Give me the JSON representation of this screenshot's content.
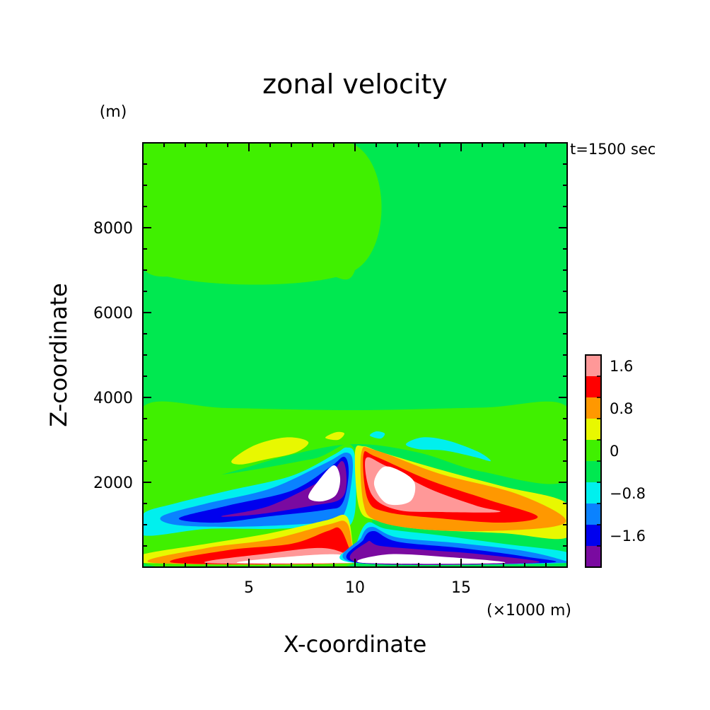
{
  "chart_data": {
    "type": "heatmap",
    "title": "zonal velocity",
    "xlabel": "X-coordinate",
    "ylabel": "Z-coordinate",
    "x_unit": "(×1000 m)",
    "y_unit": "(m)",
    "time_label": "t=1500 sec",
    "xlim": [
      0,
      20
    ],
    "ylim": [
      0,
      10000
    ],
    "x_ticks": [
      5,
      10,
      15
    ],
    "y_ticks": [
      2000,
      4000,
      6000,
      8000
    ],
    "colorbar": {
      "levels": [
        -2.0,
        -1.6,
        -1.2,
        -0.8,
        -0.4,
        0,
        0.4,
        0.8,
        1.2,
        1.6,
        2.0
      ],
      "tick_labels": [
        {
          "value": 1.6,
          "text": "1.6"
        },
        {
          "value": 0.8,
          "text": "0.8"
        },
        {
          "value": 0,
          "text": "0"
        },
        {
          "value": -0.8,
          "text": "−0.8"
        },
        {
          "value": -1.6,
          "text": "−1.6"
        }
      ],
      "colors": [
        "#7a0aa0",
        "#0000ee",
        "#0a82ff",
        "#00f0ee",
        "#00e850",
        "#40f000",
        "#e8f800",
        "#ff9800",
        "#ff0000",
        "#ff9898"
      ]
    },
    "background_color": "#00e850",
    "contours": [
      {
        "name": "upper-band-left-lower",
        "color": "#40f000",
        "points": [
          [
            0,
            7050
          ],
          [
            4,
            7080
          ],
          [
            8,
            7000
          ],
          [
            10,
            7000
          ],
          [
            10,
            9950
          ],
          [
            0,
            9950
          ]
        ]
      },
      {
        "name": "upper-band-left-upper",
        "color": "#40f000",
        "points": [
          [
            0,
            9950
          ],
          [
            10,
            9950
          ],
          [
            10,
            9950
          ],
          [
            0,
            9950
          ]
        ]
      },
      {
        "name": "mid-band",
        "color": "#40f000",
        "points": [
          [
            0,
            3780
          ],
          [
            4,
            3750
          ],
          [
            10,
            3700
          ],
          [
            16,
            3760
          ],
          [
            20,
            3780
          ],
          [
            20,
            2050
          ],
          [
            16,
            2250
          ],
          [
            13,
            2700
          ],
          [
            10,
            2900
          ],
          [
            7,
            2650
          ],
          [
            3,
            2100
          ],
          [
            0,
            1980
          ]
        ]
      },
      {
        "name": "upper-left-field",
        "color": "#40f000",
        "points": [
          [
            0,
            9950
          ],
          [
            10,
            9950
          ],
          [
            10,
            7000
          ],
          [
            0,
            7050
          ]
        ]
      },
      {
        "name": "low-left-band",
        "color": "#40f000",
        "points": [
          [
            0,
            1980
          ],
          [
            4,
            2200
          ],
          [
            8,
            2550
          ],
          [
            10,
            2750
          ],
          [
            10,
            100
          ],
          [
            0,
            100
          ]
        ]
      },
      {
        "name": "yellow-blob-left",
        "color": "#e8f800",
        "points": [
          [
            4.2,
            2520
          ],
          [
            5.3,
            2880
          ],
          [
            6.8,
            3060
          ],
          [
            7.8,
            2950
          ],
          [
            7.2,
            2700
          ],
          [
            5.8,
            2540
          ],
          [
            4.6,
            2420
          ]
        ]
      },
      {
        "name": "yellow-blob-small",
        "color": "#e8f800",
        "points": [
          [
            8.6,
            3050
          ],
          [
            9.1,
            3180
          ],
          [
            9.5,
            3150
          ],
          [
            9.2,
            3000
          ]
        ]
      },
      {
        "name": "cyan-blob-right",
        "color": "#00f0ee",
        "points": [
          [
            12.4,
            2900
          ],
          [
            13.2,
            3060
          ],
          [
            14.4,
            2980
          ],
          [
            15.8,
            2720
          ],
          [
            16.4,
            2500
          ],
          [
            15.6,
            2600
          ],
          [
            14.2,
            2750
          ],
          [
            13,
            2780
          ]
        ]
      },
      {
        "name": "cyan-blob-small",
        "color": "#00f0ee",
        "points": [
          [
            10.7,
            3100
          ],
          [
            11.0,
            3200
          ],
          [
            11.4,
            3150
          ],
          [
            11.2,
            3030
          ]
        ]
      },
      {
        "name": "negative-lobe-cyan",
        "color": "#00f0ee",
        "points": [
          [
            0,
            1250
          ],
          [
            1.5,
            1500
          ],
          [
            4,
            1800
          ],
          [
            7,
            2150
          ],
          [
            9,
            2650
          ],
          [
            9.6,
            2820
          ],
          [
            10,
            2600
          ],
          [
            10,
            1300
          ],
          [
            9.5,
            900
          ],
          [
            8.5,
            950
          ],
          [
            6,
            900
          ],
          [
            3,
            900
          ],
          [
            0,
            750
          ]
        ]
      },
      {
        "name": "negative-lobe-lightblue",
        "color": "#0a82ff",
        "points": [
          [
            0.9,
            1200
          ],
          [
            3,
            1500
          ],
          [
            6,
            1850
          ],
          [
            8.6,
            2450
          ],
          [
            9.6,
            2700
          ],
          [
            9.9,
            2400
          ],
          [
            9.6,
            1400
          ],
          [
            9,
            1100
          ],
          [
            7,
            1000
          ],
          [
            4,
            950
          ],
          [
            1.5,
            1000
          ]
        ]
      },
      {
        "name": "negative-lobe-blue",
        "color": "#0000ee",
        "points": [
          [
            1.7,
            1150
          ],
          [
            4,
            1450
          ],
          [
            7,
            1800
          ],
          [
            8.8,
            2350
          ],
          [
            9.5,
            2600
          ],
          [
            9.7,
            2200
          ],
          [
            9.4,
            1500
          ],
          [
            8.6,
            1350
          ],
          [
            6,
            1200
          ],
          [
            3.5,
            1050
          ]
        ]
      },
      {
        "name": "negative-lobe-purple",
        "color": "#7a0aa0",
        "points": [
          [
            3.7,
            1200
          ],
          [
            6,
            1450
          ],
          [
            8.6,
            2100
          ],
          [
            9.4,
            2500
          ],
          [
            9.6,
            2000
          ],
          [
            9.3,
            1600
          ],
          [
            8,
            1450
          ],
          [
            5.5,
            1250
          ]
        ]
      },
      {
        "name": "negative-lobe-core",
        "color": "#ffffff",
        "points": [
          [
            7.8,
            1650
          ],
          [
            8.3,
            2050
          ],
          [
            9.0,
            2400
          ],
          [
            9.3,
            2100
          ],
          [
            9.1,
            1700
          ],
          [
            8.4,
            1550
          ]
        ]
      },
      {
        "name": "positive-lobe-yellow",
        "color": "#e8f800",
        "points": [
          [
            10,
            2700
          ],
          [
            10.4,
            2850
          ],
          [
            11.3,
            2700
          ],
          [
            14,
            2300
          ],
          [
            17,
            1900
          ],
          [
            20,
            1500
          ],
          [
            20,
            700
          ],
          [
            17,
            800
          ],
          [
            13,
            900
          ],
          [
            11,
            1100
          ],
          [
            10.2,
            1400
          ]
        ]
      },
      {
        "name": "positive-lobe-orange",
        "color": "#ff9800",
        "points": [
          [
            10.3,
            2700
          ],
          [
            11,
            2750
          ],
          [
            14,
            2200
          ],
          [
            17.5,
            1750
          ],
          [
            19.8,
            1200
          ],
          [
            19.3,
            950
          ],
          [
            16,
            850
          ],
          [
            13,
            900
          ],
          [
            11,
            1100
          ],
          [
            10.4,
            1500
          ]
        ]
      },
      {
        "name": "positive-lobe-red",
        "color": "#ff0000",
        "points": [
          [
            10.4,
            2650
          ],
          [
            11,
            2600
          ],
          [
            13.5,
            2050
          ],
          [
            16.2,
            1600
          ],
          [
            18.6,
            1200
          ],
          [
            17,
            1050
          ],
          [
            14,
            1150
          ],
          [
            11.5,
            1300
          ],
          [
            10.6,
            1600
          ]
        ]
      },
      {
        "name": "positive-lobe-pink",
        "color": "#ff9898",
        "points": [
          [
            10.5,
            2550
          ],
          [
            11.4,
            2400
          ],
          [
            13.5,
            1850
          ],
          [
            15.7,
            1450
          ],
          [
            16.8,
            1300
          ],
          [
            14,
            1300
          ],
          [
            12,
            1350
          ],
          [
            10.8,
            1700
          ]
        ]
      },
      {
        "name": "positive-lobe-core",
        "color": "#ffffff",
        "points": [
          [
            10.9,
            1950
          ],
          [
            11.3,
            2350
          ],
          [
            12,
            2300
          ],
          [
            12.8,
            2000
          ],
          [
            12.6,
            1550
          ],
          [
            11.5,
            1500
          ]
        ]
      },
      {
        "name": "surface-left-yellow",
        "color": "#e8f800",
        "points": [
          [
            0,
            100
          ],
          [
            0,
            300
          ],
          [
            3,
            550
          ],
          [
            6,
            800
          ],
          [
            8.6,
            1100
          ],
          [
            9.6,
            1200
          ],
          [
            9.9,
            500
          ],
          [
            10,
            100
          ]
        ]
      },
      {
        "name": "surface-left-orange",
        "color": "#ff9800",
        "points": [
          [
            0.5,
            100
          ],
          [
            3,
            450
          ],
          [
            6,
            650
          ],
          [
            8.7,
            1000
          ],
          [
            9.6,
            1050
          ],
          [
            9.9,
            400
          ],
          [
            10,
            100
          ]
        ]
      },
      {
        "name": "surface-left-red",
        "color": "#ff0000",
        "points": [
          [
            1.5,
            100
          ],
          [
            4,
            400
          ],
          [
            7,
            550
          ],
          [
            8.7,
            850
          ],
          [
            9.3,
            900
          ],
          [
            9.8,
            350
          ],
          [
            10,
            100
          ]
        ]
      },
      {
        "name": "surface-left-pink",
        "color": "#ff9898",
        "points": [
          [
            3,
            100
          ],
          [
            6,
            330
          ],
          [
            8.5,
            450
          ],
          [
            9.8,
            250
          ],
          [
            10,
            100
          ]
        ]
      },
      {
        "name": "surface-left-white",
        "color": "#ffffff",
        "points": [
          [
            4.5,
            100
          ],
          [
            7,
            250
          ],
          [
            9.2,
            300
          ],
          [
            9.9,
            150
          ],
          [
            10,
            100
          ]
        ]
      },
      {
        "name": "surface-right-cyan",
        "color": "#00f0ee",
        "points": [
          [
            10,
            100
          ],
          [
            10.1,
            600
          ],
          [
            10.6,
            1050
          ],
          [
            11.5,
            900
          ],
          [
            14,
            750
          ],
          [
            17,
            550
          ],
          [
            20,
            350
          ],
          [
            20,
            100
          ]
        ]
      },
      {
        "name": "surface-right-lightblue",
        "color": "#0a82ff",
        "points": [
          [
            10.1,
            100
          ],
          [
            10.3,
            700
          ],
          [
            10.8,
            950
          ],
          [
            12,
            700
          ],
          [
            15,
            560
          ],
          [
            18,
            380
          ],
          [
            19.9,
            150
          ],
          [
            19.9,
            100
          ]
        ]
      },
      {
        "name": "surface-right-blue",
        "color": "#0000ee",
        "points": [
          [
            10.2,
            100
          ],
          [
            10.4,
            650
          ],
          [
            10.9,
            850
          ],
          [
            12,
            600
          ],
          [
            15,
            450
          ],
          [
            18,
            250
          ],
          [
            19,
            100
          ]
        ]
      },
      {
        "name": "surface-right-purple",
        "color": "#7a0aa0",
        "points": [
          [
            10.3,
            100
          ],
          [
            10.6,
            600
          ],
          [
            11.2,
            500
          ],
          [
            13.5,
            400
          ],
          [
            16,
            300
          ],
          [
            18.5,
            100
          ]
        ]
      },
      {
        "name": "surface-right-white",
        "color": "#ffffff",
        "points": [
          [
            10.4,
            100
          ],
          [
            11.5,
            300
          ],
          [
            14,
            250
          ],
          [
            17,
            100
          ]
        ]
      }
    ]
  }
}
